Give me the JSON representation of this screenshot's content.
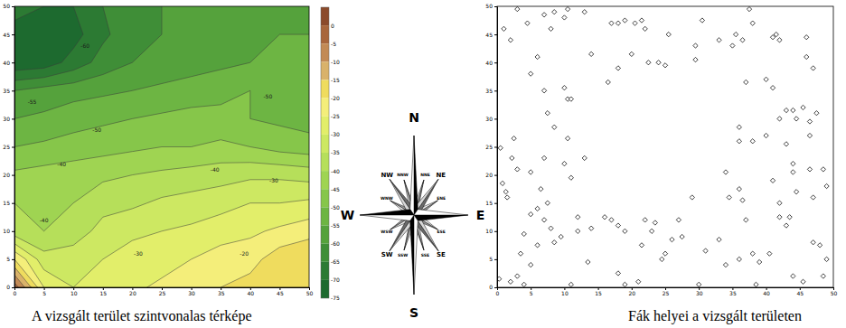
{
  "chart_data": [
    {
      "type": "contour",
      "title": "A vizsgált terület szintvonalas térképe",
      "x": [
        0,
        5,
        10,
        15,
        20,
        25,
        30,
        35,
        40,
        45,
        50
      ],
      "y": [
        0,
        5,
        10,
        15,
        20,
        25,
        30,
        35,
        40,
        45,
        50
      ],
      "z": [
        [
          -2,
          -25,
          -30,
          -30,
          -26,
          -24,
          -22,
          -20,
          -18,
          -15,
          -18
        ],
        [
          -20,
          -33,
          -32,
          -30,
          -28,
          -27,
          -25,
          -23,
          -22,
          -17,
          -15
        ],
        [
          -38,
          -40,
          -38,
          -33,
          -31,
          -30,
          -29,
          -27,
          -26,
          -24,
          -22
        ],
        [
          -40,
          -41,
          -40,
          -37,
          -36,
          -34,
          -33,
          -32,
          -30,
          -30,
          -29
        ],
        [
          -44,
          -43,
          -42,
          -41,
          -40,
          -39,
          -38,
          -37,
          -36,
          -36,
          -37
        ],
        [
          -50,
          -49,
          -48,
          -47,
          -46,
          -45,
          -45,
          -44,
          -45,
          -47,
          -48
        ],
        [
          -55,
          -54,
          -52,
          -51,
          -50,
          -49,
          -48,
          -48,
          -50,
          -51,
          -52
        ],
        [
          -60,
          -58,
          -57,
          -56,
          -55,
          -54,
          -53,
          -52,
          -50,
          -51,
          -52
        ],
        [
          -74,
          -73,
          -68,
          -63,
          -60,
          -58,
          -57,
          -56,
          -55,
          -55,
          -54
        ],
        [
          -72,
          -74,
          -72,
          -66,
          -62,
          -60,
          -58,
          -57,
          -56,
          -55,
          -55
        ],
        [
          -68,
          -70,
          -70,
          -65,
          -62,
          -60,
          -58,
          -58,
          -58,
          -57,
          -56
        ]
      ],
      "xlim": [
        0,
        50
      ],
      "ylim": [
        0,
        50
      ],
      "xticks": [
        0,
        5,
        10,
        15,
        20,
        25,
        30,
        35,
        40,
        45,
        50
      ],
      "yticks": [
        0,
        5,
        10,
        15,
        20,
        25,
        30,
        35,
        40,
        45,
        50
      ],
      "colorbar": {
        "range": [
          -75,
          5
        ],
        "ticks": [
          0,
          -5,
          -10,
          -15,
          -20,
          -25,
          -30,
          -35,
          -40,
          -45,
          -50,
          -55,
          -60,
          -65,
          -70,
          -75
        ],
        "colors": [
          "#8b4a2b",
          "#a8663c",
          "#c28a55",
          "#d9b26a",
          "#efdc5e",
          "#f4ee7a",
          "#e2ee6a",
          "#cde862",
          "#b6df5a",
          "#9fd452",
          "#86c64a",
          "#6db543",
          "#55a23c",
          "#3f8e37",
          "#2c7a33",
          "#1d6a2f"
        ]
      },
      "annotations": [
        {
          "x": 12,
          "y": 43,
          "text": "-60"
        },
        {
          "x": 3,
          "y": 33,
          "text": "-55"
        },
        {
          "x": 14,
          "y": 28,
          "text": "-50"
        },
        {
          "x": 43,
          "y": 34,
          "text": "-50"
        },
        {
          "x": 8,
          "y": 22,
          "text": "-40"
        },
        {
          "x": 34,
          "y": 21,
          "text": "-40"
        },
        {
          "x": 5,
          "y": 12,
          "text": "-40"
        },
        {
          "x": 44,
          "y": 19,
          "text": "-30"
        },
        {
          "x": 21,
          "y": 6,
          "text": "-30"
        },
        {
          "x": 39,
          "y": 6,
          "text": "-20"
        }
      ]
    },
    {
      "type": "scatter",
      "title": "Fák helyei a vizsgált területen",
      "marker": "diamond",
      "color": "#000000",
      "x": [
        0.3,
        0.5,
        0.8,
        1.3,
        1.5,
        2.2,
        2.5,
        3,
        2,
        1,
        3,
        4.5,
        5,
        6,
        7,
        8,
        8.5,
        10,
        10.5,
        13,
        14,
        17,
        18,
        19,
        20,
        20.5,
        21.5,
        22,
        22.5,
        24,
        25,
        25.5,
        29.5,
        29.5,
        30.5,
        33,
        35,
        35.5,
        36.5,
        37.5,
        38,
        41,
        41.5,
        42,
        46,
        46,
        47,
        7,
        7.5,
        8.5,
        10,
        10.5,
        11,
        16.5,
        18,
        37,
        40,
        41,
        42,
        43,
        44,
        44.5,
        45.5,
        43,
        36,
        36,
        38,
        46.5,
        47.5,
        46.5,
        48.5,
        46.5,
        44,
        49,
        47,
        44.5,
        40,
        34,
        34.5,
        36,
        36.5,
        37,
        41,
        42,
        43.5,
        10,
        10.5,
        11,
        13,
        12,
        7,
        5,
        6.5,
        5,
        6,
        8,
        8.5,
        9.5,
        7,
        7.5,
        6,
        4,
        3.5,
        5,
        3,
        2,
        4,
        11,
        12,
        14,
        13.5,
        16,
        17,
        18,
        19,
        18,
        21.5,
        22,
        23,
        23.5,
        24.5,
        25,
        26,
        27.5,
        27,
        29,
        30,
        31,
        33,
        34,
        36,
        38,
        39,
        40.5,
        42,
        43,
        44,
        45.5,
        47,
        48,
        48.5,
        49,
        19,
        21,
        38.5,
        44
      ],
      "y": [
        1.5,
        24.8,
        18.5,
        17,
        16,
        23,
        26.5,
        21,
        44,
        46,
        49.5,
        47,
        38,
        41,
        48.5,
        46,
        49,
        48,
        49.5,
        49,
        41.5,
        47,
        47,
        47.5,
        41.5,
        47,
        47.5,
        46,
        40,
        40,
        39.5,
        45,
        43,
        40.5,
        47.5,
        44,
        43,
        45,
        44,
        49.5,
        47,
        44.5,
        45,
        44,
        44.5,
        41,
        39,
        35,
        31,
        28.5,
        35.5,
        33.5,
        33.5,
        36.5,
        39,
        36.5,
        37,
        35.5,
        30,
        31.5,
        31.5,
        30,
        32,
        25.5,
        28.5,
        26,
        26,
        29.5,
        31,
        27,
        21,
        21,
        22,
        18,
        16,
        17,
        27,
        20.5,
        16,
        17.5,
        15.5,
        12,
        19,
        15,
        12.5,
        22,
        26.5,
        19.5,
        23,
        12.5,
        23,
        20.5,
        17.5,
        13,
        14,
        10.5,
        8,
        9,
        12,
        15,
        7.5,
        9.5,
        6,
        4,
        2,
        1,
        0.5,
        0.5,
        10,
        10.5,
        4.5,
        12.5,
        12,
        11,
        10,
        2.5,
        7.5,
        12,
        10,
        11.5,
        5,
        6,
        8.5,
        9,
        12,
        16,
        0.5,
        6.5,
        8.5,
        4,
        5,
        6,
        4.5,
        6,
        12.5,
        11,
        2,
        1,
        8,
        7.5,
        2,
        5,
        0.5,
        1,
        0.5,
        20.5
      ],
      "xlim": [
        0,
        50
      ],
      "ylim": [
        0,
        50
      ],
      "xticks": [
        0,
        5,
        10,
        15,
        20,
        25,
        30,
        35,
        40,
        45,
        50
      ],
      "yticks": [
        0,
        5,
        10,
        15,
        20,
        25,
        30,
        35,
        40,
        45,
        50
      ]
    }
  ],
  "compass": {
    "labels": [
      "N",
      "NNE",
      "NE",
      "ENE",
      "E",
      "ESE",
      "SE",
      "SSE",
      "S",
      "SSW",
      "SW",
      "WSW",
      "W",
      "WNW",
      "NW",
      "NNW"
    ]
  }
}
